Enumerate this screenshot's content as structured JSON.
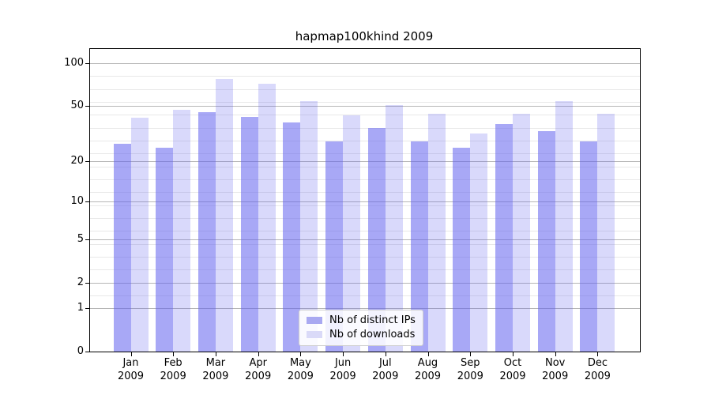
{
  "chart_data": {
    "type": "bar",
    "title": "hapmap100khind 2009",
    "categories": [
      "Jan",
      "Feb",
      "Mar",
      "Apr",
      "May",
      "Jun",
      "Jul",
      "Aug",
      "Sep",
      "Oct",
      "Nov",
      "Dec"
    ],
    "category_year": "2009",
    "series": [
      {
        "name": "Nb of distinct IPs",
        "bar_color": "rgba(96,96,238,0.55)",
        "legend_color": "#a9a9f1",
        "values": [
          27,
          25,
          45,
          42,
          38,
          28,
          35,
          28,
          25,
          37,
          33,
          28
        ]
      },
      {
        "name": "Nb of downloads",
        "bar_color": "rgba(96,96,238,0.24)",
        "legend_color": "#dadaf8",
        "values": [
          41,
          47,
          77,
          72,
          54,
          43,
          51,
          44,
          32,
          44,
          54,
          44
        ]
      }
    ],
    "xlabel": "",
    "ylabel": "",
    "yticks": [
      0,
      1,
      2,
      5,
      10,
      20,
      50,
      100
    ],
    "ylim": [
      0,
      126
    ],
    "yscale": "log10(value+1)",
    "grid": "horizontal major and minor gridlines",
    "legend_position": "inside plot, lower center",
    "frame": "full black box around plot",
    "background_color": "#ffffff",
    "gridline_major_color": "#b6b6b6",
    "gridline_minor_color": "#e8e8e8"
  }
}
